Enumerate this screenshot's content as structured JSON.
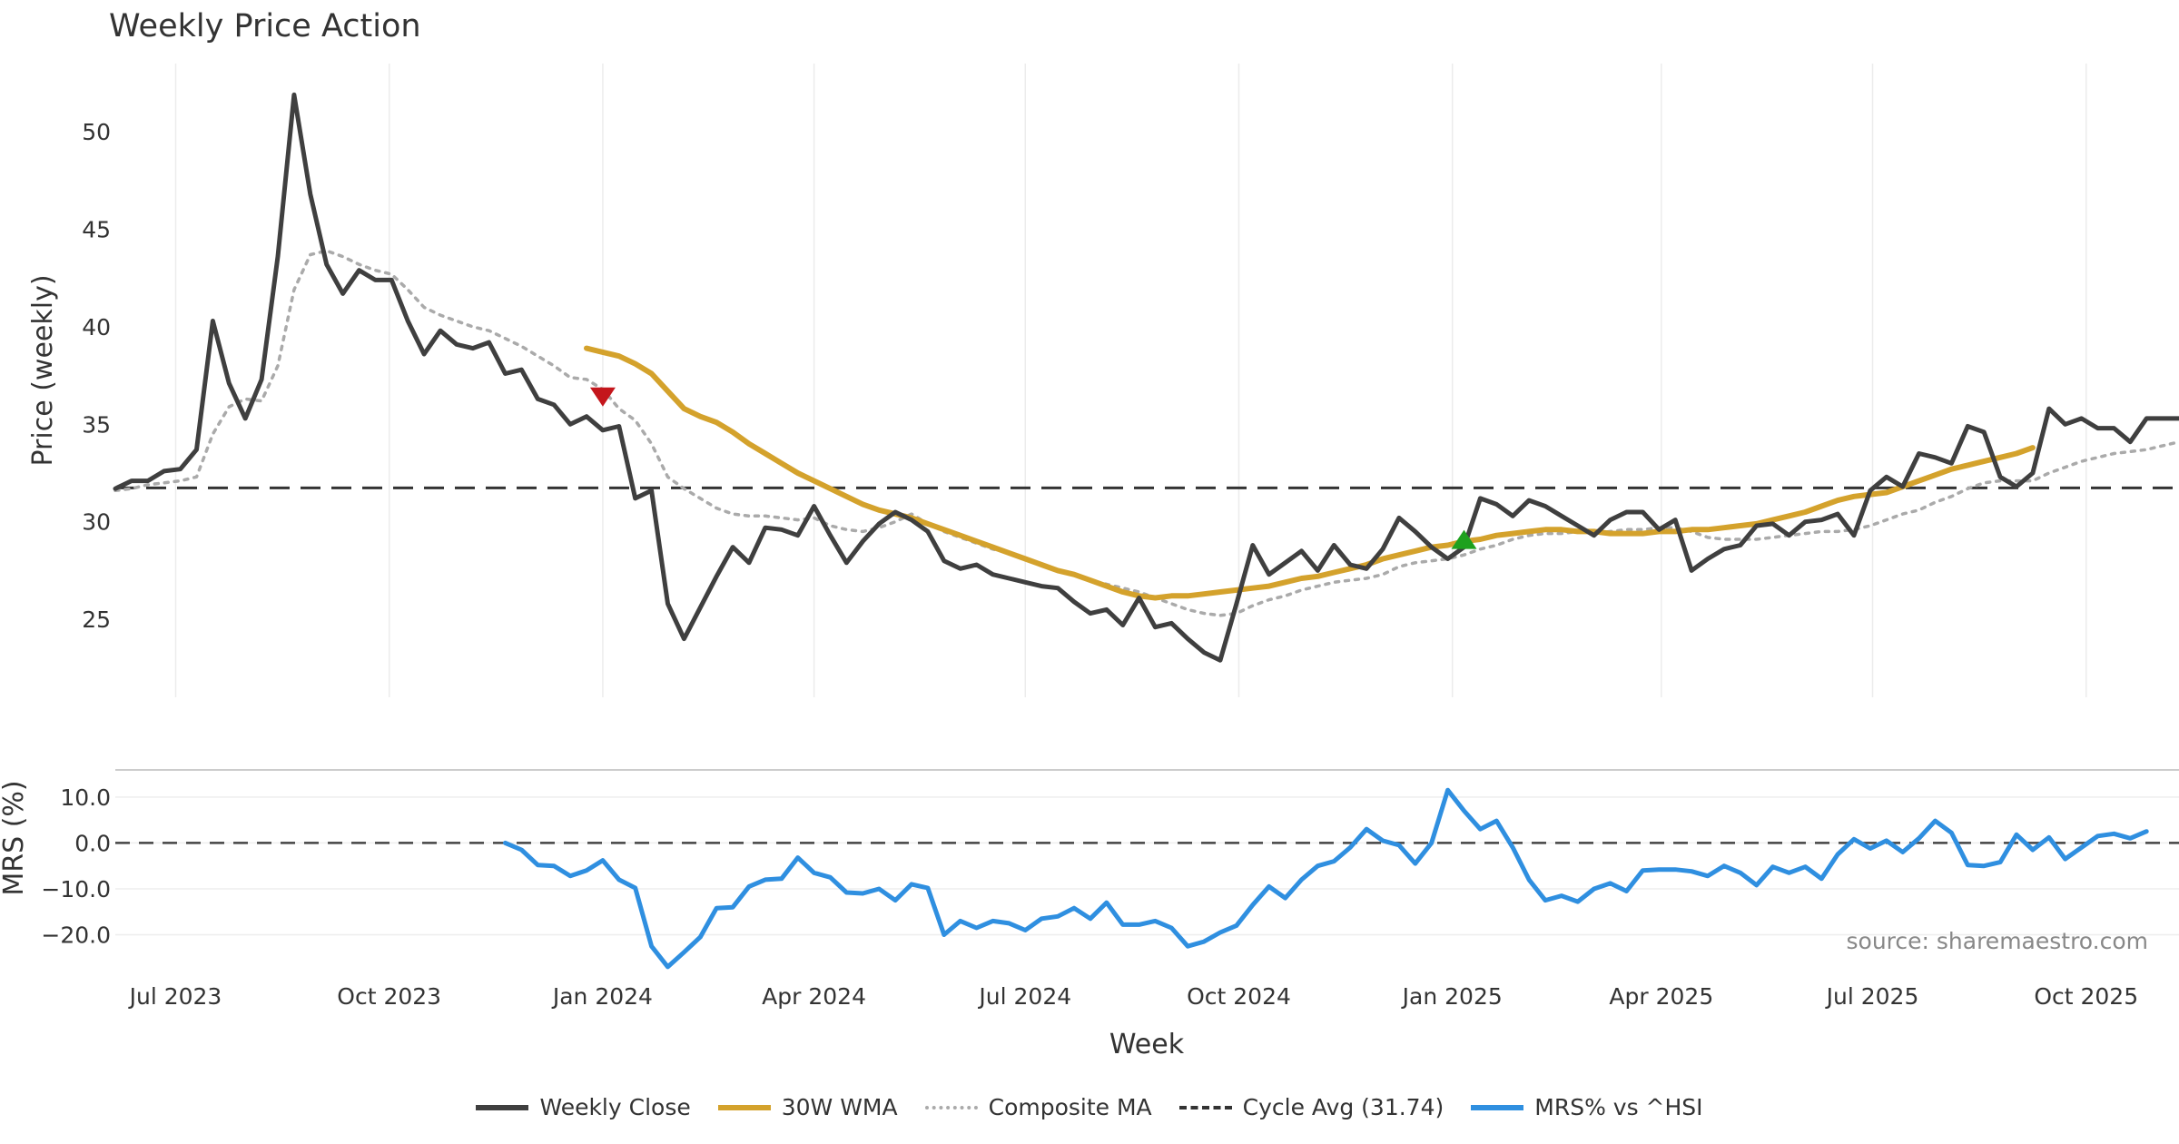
{
  "chart_data": {
    "type": "line",
    "title": "Weekly Price Action",
    "xlabel": "Week",
    "x_tick_labels": [
      "Jul 2023",
      "Oct 2023",
      "Jan 2024",
      "Apr 2024",
      "Jul 2024",
      "Oct 2024",
      "Jan 2025",
      "Apr 2025",
      "Jul 2025",
      "Oct 2025"
    ],
    "x_start": "2023-06-05",
    "week_count": 128,
    "price_panel": {
      "ylabel": "Price (weekly)",
      "ylim": [
        21,
        53.5
      ],
      "yticks": [
        25,
        30,
        35,
        40,
        45,
        50
      ],
      "series": [
        {
          "name": "Weekly Close",
          "color": "#3f3f3f",
          "start_week": 0,
          "values": [
            31.7,
            32.1,
            32.1,
            32.6,
            32.7,
            33.7,
            40.3,
            37.1,
            35.3,
            37.3,
            43.6,
            51.9,
            46.8,
            43.2,
            41.7,
            42.9,
            42.4,
            42.4,
            40.3,
            38.6,
            39.8,
            39.1,
            38.9,
            39.2,
            37.6,
            37.8,
            36.3,
            36.0,
            35.0,
            35.4,
            34.7,
            34.9,
            31.2,
            31.6,
            25.8,
            24.0,
            25.6,
            27.2,
            28.7,
            27.9,
            29.7,
            29.6,
            29.3,
            30.8,
            29.3,
            27.9,
            29.0,
            29.9,
            30.5,
            30.1,
            29.5,
            28.0,
            27.6,
            27.8,
            27.3,
            27.1,
            26.9,
            26.7,
            26.6,
            25.9,
            25.3,
            25.5,
            24.7,
            26.1,
            24.6,
            24.8,
            24.0,
            23.3,
            22.9,
            25.8,
            28.8,
            27.3,
            27.9,
            28.5,
            27.5,
            28.8,
            27.8,
            27.6,
            28.6,
            30.2,
            29.5,
            28.7,
            28.1,
            28.7,
            31.2,
            30.9,
            30.3,
            31.1,
            30.8,
            30.3,
            29.8,
            29.3,
            30.1,
            30.5,
            30.5,
            29.6,
            30.1,
            27.5,
            28.1,
            28.6,
            28.8,
            29.8,
            29.9,
            29.3,
            30.0,
            30.1,
            30.4,
            29.3,
            31.6,
            32.3,
            31.8,
            33.5,
            33.3,
            33.0,
            34.9,
            34.6,
            32.3,
            31.8,
            32.5,
            35.8,
            35.0,
            35.3,
            34.8,
            34.8,
            34.1,
            35.3,
            35.3,
            35.3
          ]
        },
        {
          "name": "30W WMA",
          "color": "#d4a22c",
          "start_week": 29,
          "values": [
            38.9,
            38.7,
            38.5,
            38.1,
            37.6,
            36.7,
            35.8,
            35.4,
            35.1,
            34.6,
            34.0,
            33.5,
            33.0,
            32.5,
            32.1,
            31.7,
            31.3,
            30.9,
            30.6,
            30.4,
            30.2,
            29.9,
            29.6,
            29.3,
            29.0,
            28.7,
            28.4,
            28.1,
            27.8,
            27.5,
            27.3,
            27.0,
            26.7,
            26.4,
            26.2,
            26.1,
            26.2,
            26.2,
            26.3,
            26.4,
            26.5,
            26.6,
            26.7,
            26.9,
            27.1,
            27.2,
            27.4,
            27.6,
            27.8,
            28.1,
            28.3,
            28.5,
            28.7,
            28.8,
            29.0,
            29.1,
            29.3,
            29.4,
            29.5,
            29.6,
            29.6,
            29.5,
            29.5,
            29.4,
            29.4,
            29.4,
            29.5,
            29.5,
            29.6,
            29.6,
            29.7,
            29.8,
            29.9,
            30.1,
            30.3,
            30.5,
            30.8,
            31.1,
            31.3,
            31.4,
            31.5,
            31.8,
            32.1,
            32.4,
            32.7,
            32.9,
            33.1,
            33.3,
            33.5,
            33.8
          ]
        },
        {
          "name": "Composite MA",
          "color": "#aaaaaa",
          "start_week": 0,
          "values": [
            31.6,
            31.7,
            31.9,
            32.0,
            32.1,
            32.3,
            34.5,
            35.9,
            36.3,
            36.2,
            38.0,
            41.9,
            43.7,
            43.9,
            43.6,
            43.2,
            42.9,
            42.7,
            41.9,
            41.0,
            40.6,
            40.3,
            40.0,
            39.8,
            39.4,
            39.0,
            38.5,
            38.0,
            37.4,
            37.3,
            36.8,
            35.8,
            35.2,
            34.0,
            32.3,
            31.7,
            31.2,
            30.7,
            30.4,
            30.3,
            30.3,
            30.2,
            30.1,
            30.2,
            29.8,
            29.6,
            29.5,
            29.7,
            30.0,
            30.4,
            29.9,
            29.5,
            29.2,
            28.9,
            28.6,
            28.4,
            28.1,
            27.8,
            27.5,
            27.3,
            27.0,
            26.8,
            26.6,
            26.4,
            26.1,
            25.8,
            25.5,
            25.3,
            25.2,
            25.3,
            25.7,
            26.0,
            26.2,
            26.5,
            26.7,
            26.9,
            27.0,
            27.1,
            27.3,
            27.7,
            27.9,
            28.0,
            28.1,
            28.3,
            28.6,
            28.8,
            29.1,
            29.3,
            29.4,
            29.4,
            29.5,
            29.4,
            29.5,
            29.6,
            29.6,
            29.7,
            29.7,
            29.5,
            29.2,
            29.1,
            29.1,
            29.1,
            29.2,
            29.3,
            29.4,
            29.5,
            29.5,
            29.6,
            29.8,
            30.1,
            30.4,
            30.6,
            31.0,
            31.3,
            31.7,
            32.0,
            32.1,
            32.1,
            32.1,
            32.5,
            32.8,
            33.1,
            33.3,
            33.5,
            33.6,
            33.7,
            33.9,
            34.1
          ]
        },
        {
          "name": "Cycle Avg (31.74)",
          "color": "#333333",
          "constant": 31.74
        }
      ],
      "markers": [
        {
          "type": "sell",
          "week": 30,
          "value": 36.5,
          "color": "#c4161c"
        },
        {
          "type": "buy",
          "week": 83,
          "value": 29.0,
          "color": "#1ea11e"
        }
      ]
    },
    "mrs_panel": {
      "ylabel": "MRS (%)",
      "ylim": [
        -28,
        15.5
      ],
      "yticks": [
        10.0,
        0.0,
        -10.0,
        -20.0
      ],
      "ytick_labels": [
        "10.0",
        "0.0",
        "−10.0",
        "−20.0"
      ],
      "zero_line": 0,
      "series": [
        {
          "name": "MRS% vs ^HSI",
          "color": "#2f8fe0",
          "start_week": 24,
          "values": [
            0.0,
            -1.5,
            -4.8,
            -5.0,
            -7.2,
            -6.0,
            -3.8,
            -8.0,
            -9.8,
            -22.5,
            -27.0,
            -23.8,
            -20.5,
            -14.2,
            -14.0,
            -9.5,
            -8.0,
            -7.8,
            -3.2,
            -6.5,
            -7.5,
            -10.8,
            -11.0,
            -10.0,
            -12.5,
            -9.0,
            -9.8,
            -20.0,
            -17.0,
            -18.5,
            -17.0,
            -17.5,
            -19.0,
            -16.5,
            -16.0,
            -14.2,
            -16.5,
            -13.0,
            -17.8,
            -17.8,
            -17.0,
            -18.5,
            -22.5,
            -21.5,
            -19.5,
            -18.0,
            -13.5,
            -9.5,
            -12.0,
            -8.0,
            -5.0,
            -4.0,
            -1.0,
            3.0,
            0.5,
            -0.5,
            -4.5,
            0.0,
            11.5,
            7.0,
            3.0,
            4.8,
            -1.0,
            -8.0,
            -12.5,
            -11.5,
            -12.8,
            -10.0,
            -8.8,
            -10.5,
            -6.0,
            -5.8,
            -5.8,
            -6.2,
            -7.2,
            -5.0,
            -6.5,
            -9.2,
            -5.2,
            -6.5,
            -5.2,
            -7.8,
            -2.5,
            0.8,
            -1.2,
            0.5,
            -2.0,
            1.0,
            4.8,
            2.2,
            -4.8,
            -5.0,
            -4.2,
            1.8,
            -1.5,
            1.2,
            -3.5,
            -1.0,
            1.5,
            2.0,
            1.0,
            2.5
          ]
        }
      ]
    },
    "source": "source: sharemaestro.com",
    "legend": {
      "position": "bottom-center",
      "entries": [
        "Weekly Close",
        "30W WMA",
        "Composite MA",
        "Cycle Avg (31.74)",
        "MRS% vs ^HSI"
      ]
    }
  }
}
